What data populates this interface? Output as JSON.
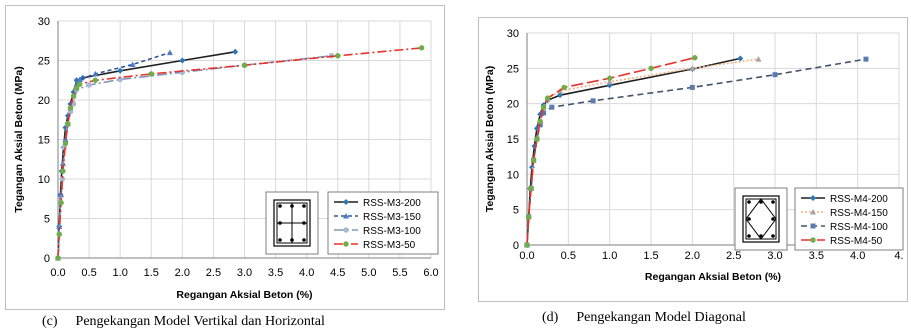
{
  "captions": {
    "left": {
      "letter": "(c)",
      "text": "Pengekangan Model Vertikal dan Horizontal"
    },
    "right": {
      "letter": "(d)",
      "text": "Pengekangan Model Diagonal"
    }
  },
  "chart_data": [
    {
      "type": "line",
      "ylabel": "Tegangan Aksial Beton (MPa)",
      "xlabel": "Regangan Aksial Beton (%)",
      "xlim": [
        0,
        6
      ],
      "ylim": [
        0,
        30
      ],
      "xticks": [
        "0.0",
        "0.5",
        "1.0",
        "1.5",
        "2.0",
        "2.5",
        "3.0",
        "3.5",
        "4.0",
        "4.5",
        "5.0",
        "5.5",
        "6.0"
      ],
      "yticks": [
        "0",
        "5",
        "10",
        "15",
        "20",
        "25",
        "30"
      ],
      "grid": true,
      "legend_position": "bottom-right",
      "section_icon": "rectangular-section-with-vertical-and-horizontal-ties-icon",
      "series": [
        {
          "name": "RSS-M3-200",
          "color": "#1f1f1f",
          "dash": "solid",
          "marker_color": "#2e75b6",
          "marker": "diamond",
          "x": [
            0,
            0.02,
            0.04,
            0.06,
            0.09,
            0.12,
            0.16,
            0.2,
            0.25,
            0.3,
            0.4,
            1.0,
            2.0,
            2.85
          ],
          "y": [
            0,
            4,
            8,
            11,
            14,
            16.5,
            18,
            19.5,
            21,
            22.5,
            22.8,
            23.7,
            25,
            26.1
          ]
        },
        {
          "name": "RSS-M3-150",
          "color": "#2e5597",
          "dash": "4,3",
          "marker_color": "#4a7bc8",
          "marker": "triangle",
          "x": [
            0,
            0.02,
            0.05,
            0.08,
            0.12,
            0.16,
            0.2,
            0.25,
            0.3,
            0.35,
            0.6,
            1.2,
            1.8
          ],
          "y": [
            0,
            4,
            8,
            12,
            15,
            17,
            19,
            20.5,
            22,
            22.6,
            23.3,
            24.5,
            26
          ]
        },
        {
          "name": "RSS-M3-100",
          "color": "#8097b8",
          "dash": "10,3,2,3",
          "marker_color": "#a6b8d4",
          "marker": "circle",
          "x": [
            0,
            0.02,
            0.04,
            0.07,
            0.1,
            0.15,
            0.2,
            0.25,
            0.3,
            0.5,
            1.0,
            2.0,
            3.0,
            4.4
          ],
          "y": [
            0,
            3,
            7,
            10,
            14,
            17,
            18.5,
            19.5,
            21.3,
            21.9,
            22.6,
            23.5,
            24.4,
            25.6
          ]
        },
        {
          "name": "RSS-M3-50",
          "color": "#e8322b",
          "dash": "9,3,2,3",
          "marker_color": "#70ad47",
          "marker": "circle",
          "x": [
            0,
            0.02,
            0.05,
            0.08,
            0.12,
            0.16,
            0.2,
            0.25,
            0.3,
            0.35,
            0.6,
            1.5,
            3.0,
            4.5,
            5.85
          ],
          "y": [
            0,
            3,
            7,
            11,
            14.5,
            17,
            19,
            20.5,
            21.5,
            22,
            22.5,
            23.3,
            24.4,
            25.6,
            26.6
          ]
        }
      ]
    },
    {
      "type": "line",
      "ylabel": "Tegangan Aksial Beton (MPa)",
      "xlabel": "Regangan Aksial Beton (%)",
      "xlim": [
        0,
        4.5
      ],
      "ylim": [
        0,
        30
      ],
      "xticks": [
        "0.0",
        "0.5",
        "1.0",
        "1.5",
        "2.0",
        "2.5",
        "3.0",
        "3.5",
        "4.0",
        "4."
      ],
      "yticks": [
        "0",
        "5",
        "10",
        "15",
        "20",
        "25",
        "30"
      ],
      "grid": true,
      "legend_position": "bottom-right",
      "section_icon": "rectangular-section-with-diagonal-ties-icon",
      "series": [
        {
          "name": "RSS-M4-200",
          "color": "#1f1f1f",
          "dash": "solid",
          "marker_color": "#2e75b6",
          "marker": "diamond",
          "x": [
            0,
            0.02,
            0.04,
            0.06,
            0.09,
            0.12,
            0.16,
            0.2,
            0.25,
            0.4,
            1.0,
            2.0,
            2.58
          ],
          "y": [
            0,
            4,
            8,
            11,
            14,
            16.5,
            18.5,
            19.8,
            20.5,
            21.2,
            22.6,
            24.9,
            26.4
          ]
        },
        {
          "name": "RSS-M4-150",
          "color": "#f4b183",
          "dash": "2,2",
          "marker_color": "#a5a5a5",
          "marker": "triangle",
          "x": [
            0,
            0.02,
            0.05,
            0.08,
            0.12,
            0.16,
            0.2,
            0.25,
            0.4,
            1.0,
            2.0,
            2.8
          ],
          "y": [
            0,
            4,
            8,
            12,
            15,
            17.5,
            19.5,
            20.7,
            21.8,
            23.1,
            25,
            26.3
          ]
        },
        {
          "name": "RSS-M4-100",
          "color": "#44546a",
          "dash": "6,4",
          "marker_color": "#5b7cb0",
          "marker": "square",
          "x": [
            0,
            0.02,
            0.05,
            0.08,
            0.12,
            0.16,
            0.2,
            0.3,
            0.8,
            2.0,
            3.0,
            4.1
          ],
          "y": [
            0,
            4,
            8,
            12,
            15,
            17,
            18.7,
            19.5,
            20.4,
            22.3,
            24.1,
            26.3
          ]
        },
        {
          "name": "RSS-M4-50",
          "color": "#e8322b",
          "dash": "12,4",
          "marker_color": "#70ad47",
          "marker": "circle",
          "x": [
            0,
            0.02,
            0.05,
            0.08,
            0.12,
            0.16,
            0.2,
            0.25,
            0.45,
            1.0,
            1.5,
            2.03
          ],
          "y": [
            0,
            4,
            8,
            12,
            15,
            17.5,
            19.5,
            20.8,
            22.3,
            23.6,
            25,
            26.5
          ]
        }
      ]
    }
  ]
}
